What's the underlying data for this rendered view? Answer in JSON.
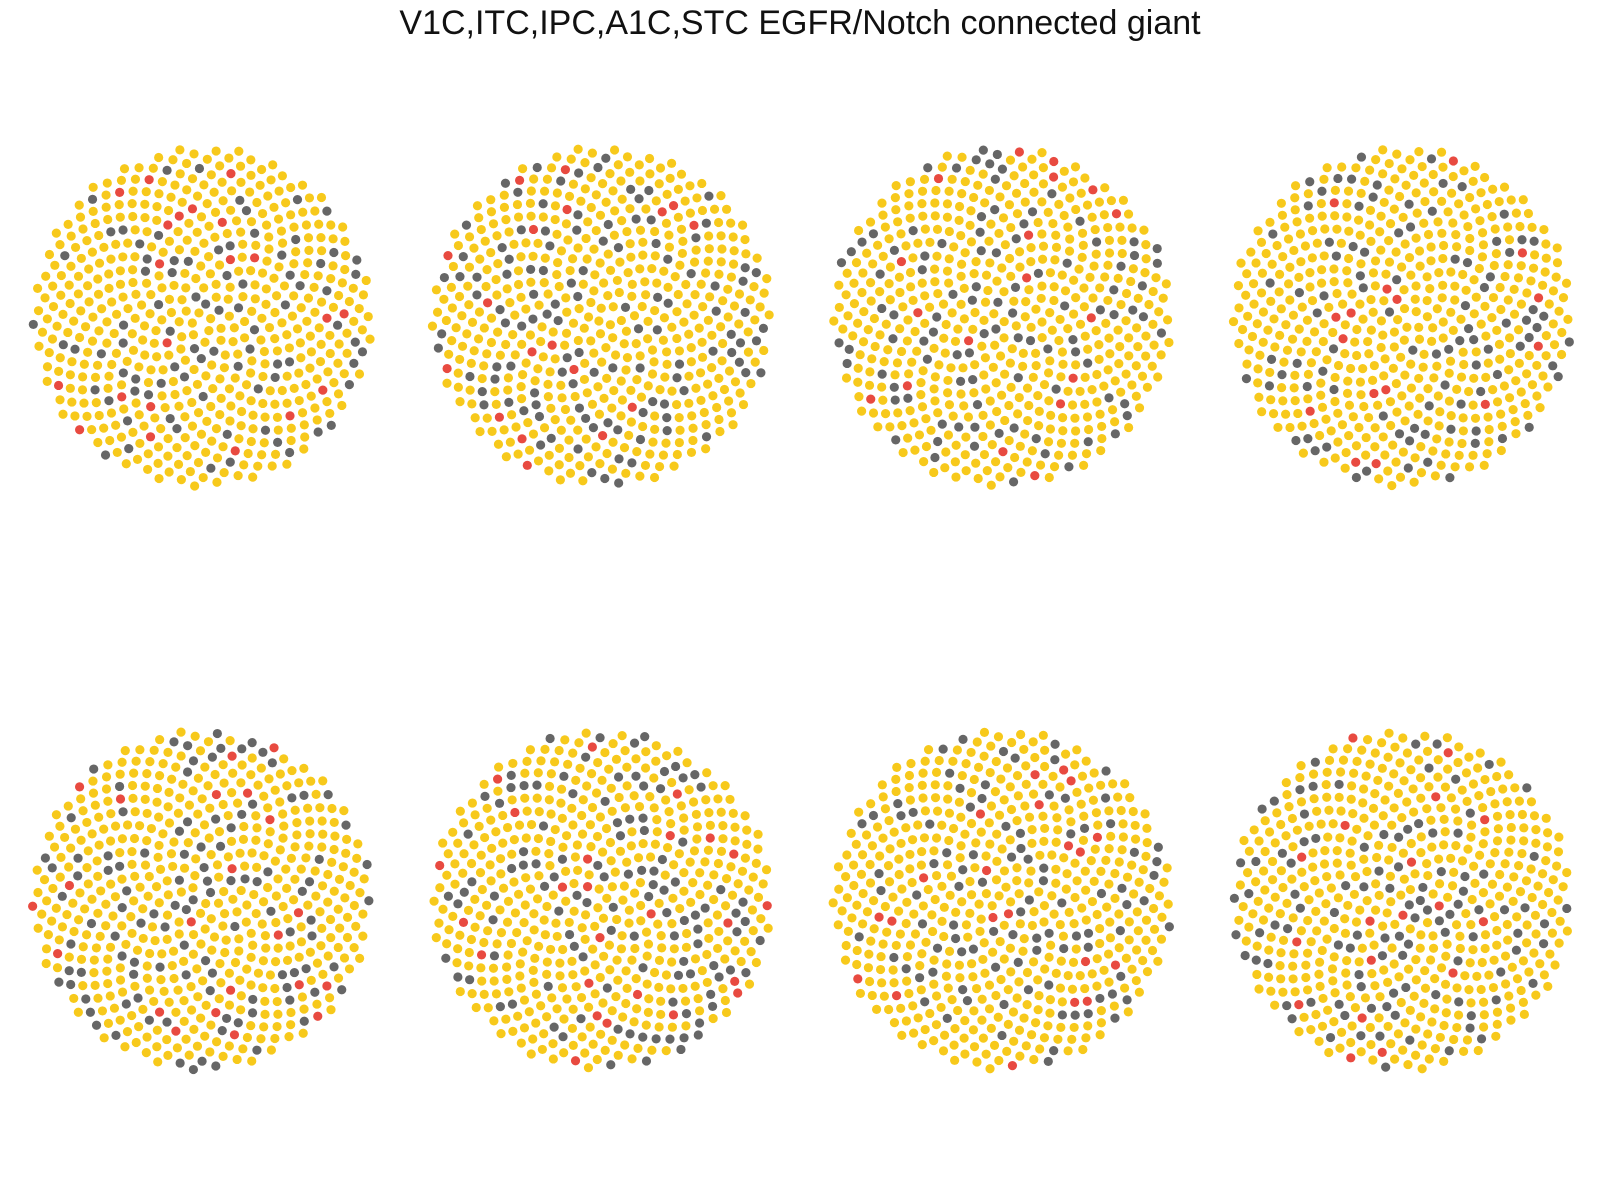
{
  "title": "V1C,ITC,IPC,A1C,STC EGFR/Notch connected giant",
  "colors": {
    "background": "#ffffff",
    "node_default": "#f7c91b",
    "node_gray": "#666666",
    "node_red": "#e84a40"
  },
  "panels": [
    {
      "id": "panel-1",
      "seed": 11
    },
    {
      "id": "panel-2",
      "seed": 23
    },
    {
      "id": "panel-3",
      "seed": 37
    },
    {
      "id": "panel-4",
      "seed": 41
    },
    {
      "id": "panel-5",
      "seed": 53
    },
    {
      "id": "panel-6",
      "seed": 67
    },
    {
      "id": "panel-7",
      "seed": 79
    },
    {
      "id": "panel-8",
      "seed": 97
    }
  ]
}
